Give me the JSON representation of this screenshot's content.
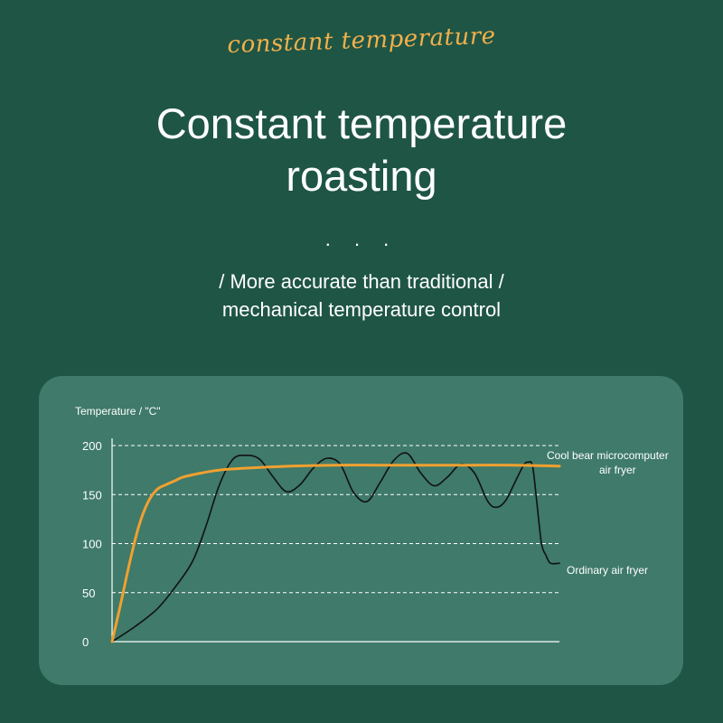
{
  "header": {
    "script_title": "constant temperature",
    "headline_line1": "Constant temperature",
    "headline_line2": "roasting",
    "dots": ". . .",
    "subline_line1": "/ More accurate than traditional /",
    "subline_line2": "mechanical temperature control"
  },
  "colors": {
    "background": "#1f5545",
    "panel": "#3f7a6a",
    "accent": "#f2b04a",
    "series_microcomputer": "#f0a030",
    "series_ordinary": "#111111"
  },
  "chart_data": {
    "type": "line",
    "ylabel": "Temperature / \"C\"",
    "xlabel": "",
    "ylim": [
      0,
      200
    ],
    "yticks": [
      0,
      50,
      100,
      150,
      200
    ],
    "grid": "horizontal dashed",
    "legend": "right, inline labels",
    "series": [
      {
        "name": "Cool bear microcomputer air fryer",
        "label_line1": "Cool bear microcomputer",
        "label_line2": "air fryer",
        "color": "#f0a030",
        "x": [
          0,
          2,
          4,
          6,
          8,
          10,
          12,
          14,
          16,
          20,
          24,
          30,
          40,
          50,
          60,
          70,
          80,
          90,
          100
        ],
        "y": [
          0,
          40,
          82,
          118,
          142,
          155,
          160,
          164,
          168,
          172,
          175,
          177,
          179,
          180,
          180,
          180,
          180,
          180,
          179
        ]
      },
      {
        "name": "Ordinary air fryer",
        "label_line1": "Ordinary air fryer",
        "color": "#111111",
        "x": [
          0,
          5,
          10,
          14,
          18,
          21,
          24,
          27,
          30,
          33,
          36,
          39,
          42,
          45,
          48,
          51,
          54,
          57,
          60,
          63,
          66,
          69,
          72,
          75,
          78,
          81,
          84,
          86,
          88,
          90,
          92,
          93,
          94,
          95,
          96,
          97,
          98,
          100
        ],
        "y": [
          0,
          15,
          33,
          55,
          82,
          118,
          160,
          186,
          190,
          186,
          168,
          153,
          160,
          177,
          187,
          181,
          152,
          143,
          163,
          185,
          192,
          172,
          159,
          168,
          181,
          172,
          143,
          137,
          144,
          162,
          180,
          183,
          179,
          140,
          100,
          88,
          80,
          80
        ]
      }
    ]
  }
}
